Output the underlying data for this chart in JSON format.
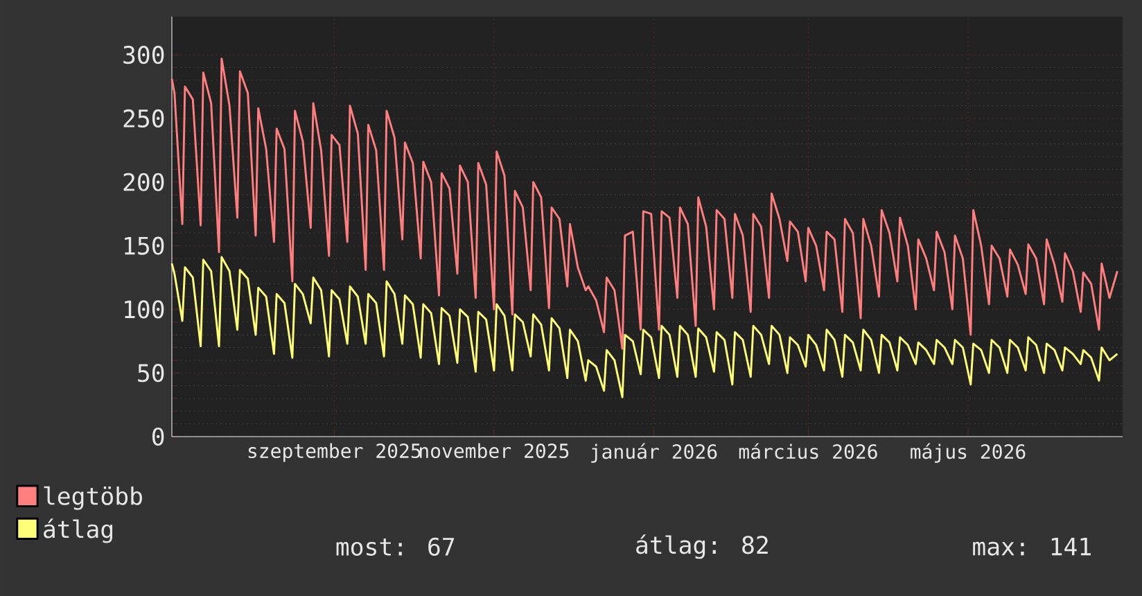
{
  "chart_data": {
    "type": "line",
    "x": [
      "2025-07-01",
      "2025-07-02",
      "2025-07-05",
      "2025-07-06",
      "2025-07-09",
      "2025-07-12",
      "2025-07-13",
      "2025-07-16",
      "2025-07-19",
      "2025-07-20",
      "2025-07-23",
      "2025-07-26",
      "2025-07-27",
      "2025-07-30",
      "2025-08-02",
      "2025-08-03",
      "2025-08-06",
      "2025-08-09",
      "2025-08-10",
      "2025-08-13",
      "2025-08-16",
      "2025-08-17",
      "2025-08-20",
      "2025-08-23",
      "2025-08-24",
      "2025-08-27",
      "2025-08-30",
      "2025-08-31",
      "2025-09-03",
      "2025-09-06",
      "2025-09-07",
      "2025-09-10",
      "2025-09-13",
      "2025-09-14",
      "2025-09-17",
      "2025-09-20",
      "2025-09-21",
      "2025-09-24",
      "2025-09-27",
      "2025-09-28",
      "2025-10-01",
      "2025-10-04",
      "2025-10-05",
      "2025-10-08",
      "2025-10-11",
      "2025-10-12",
      "2025-10-15",
      "2025-10-18",
      "2025-10-19",
      "2025-10-22",
      "2025-10-25",
      "2025-10-26",
      "2025-10-29",
      "2025-11-01",
      "2025-11-02",
      "2025-11-05",
      "2025-11-08",
      "2025-11-09",
      "2025-11-12",
      "2025-11-15",
      "2025-11-16",
      "2025-11-19",
      "2025-11-22",
      "2025-11-23",
      "2025-11-26",
      "2025-11-29",
      "2025-11-30",
      "2025-12-03",
      "2025-12-06",
      "2025-12-07",
      "2025-12-10",
      "2025-12-13",
      "2025-12-14",
      "2025-12-17",
      "2025-12-20",
      "2025-12-21",
      "2025-12-24",
      "2025-12-27",
      "2025-12-28",
      "2025-12-31",
      "2026-01-03",
      "2026-01-04",
      "2026-01-07",
      "2026-01-10",
      "2026-01-11",
      "2026-01-14",
      "2026-01-17",
      "2026-01-18",
      "2026-01-21",
      "2026-01-24",
      "2026-01-25",
      "2026-01-28",
      "2026-01-31",
      "2026-02-01",
      "2026-02-04",
      "2026-02-07",
      "2026-02-08",
      "2026-02-11",
      "2026-02-14",
      "2026-02-15",
      "2026-02-18",
      "2026-02-21",
      "2026-02-22",
      "2026-02-25",
      "2026-02-28",
      "2026-03-01",
      "2026-03-04",
      "2026-03-07",
      "2026-03-08",
      "2026-03-11",
      "2026-03-14",
      "2026-03-15",
      "2026-03-18",
      "2026-03-21",
      "2026-03-22",
      "2026-03-25",
      "2026-03-28",
      "2026-03-29",
      "2026-04-01",
      "2026-04-04",
      "2026-04-05",
      "2026-04-08",
      "2026-04-11",
      "2026-04-12",
      "2026-04-15",
      "2026-04-18",
      "2026-04-19",
      "2026-04-22",
      "2026-04-25",
      "2026-04-26",
      "2026-04-29",
      "2026-05-02",
      "2026-05-03",
      "2026-05-06",
      "2026-05-09",
      "2026-05-10",
      "2026-05-13",
      "2026-05-16",
      "2026-05-17",
      "2026-05-20",
      "2026-05-23",
      "2026-05-24",
      "2026-05-27",
      "2026-05-30",
      "2026-05-31",
      "2026-06-03",
      "2026-06-06",
      "2026-06-07",
      "2026-06-10",
      "2026-06-13",
      "2026-06-14",
      "2026-06-17",
      "2026-06-20",
      "2026-06-21",
      "2026-06-24",
      "2026-06-27"
    ],
    "series": [
      {
        "name": "legtöbb",
        "color": "#ff7f7f",
        "values": [
          281,
          270,
          167,
          275,
          265,
          166,
          286,
          262,
          145,
          297,
          260,
          172,
          287,
          270,
          158,
          258,
          226,
          153,
          242,
          226,
          122,
          256,
          232,
          164,
          262,
          225,
          142,
          237,
          229,
          153,
          260,
          238,
          131,
          245,
          225,
          131,
          256,
          235,
          155,
          231,
          215,
          140,
          216,
          200,
          111,
          207,
          195,
          128,
          213,
          200,
          109,
          215,
          198,
          100,
          224,
          205,
          96,
          193,
          180,
          115,
          200,
          188,
          101,
          180,
          171,
          118,
          167,
          133,
          115,
          118,
          107,
          82,
          125,
          115,
          69,
          158,
          161,
          84,
          177,
          175,
          84,
          177,
          172,
          109,
          180,
          167,
          87,
          188,
          165,
          100,
          178,
          171,
          109,
          175,
          158,
          98,
          175,
          165,
          109,
          191,
          171,
          138,
          169,
          161,
          122,
          164,
          150,
          115,
          161,
          155,
          98,
          171,
          160,
          93,
          171,
          150,
          110,
          178,
          160,
          122,
          172,
          150,
          100,
          155,
          140,
          115,
          161,
          145,
          100,
          158,
          140,
          80,
          178,
          150,
          104,
          150,
          140,
          110,
          147,
          135,
          112,
          151,
          140,
          104,
          155,
          135,
          106,
          144,
          130,
          98,
          129,
          120,
          84,
          136,
          109,
          130
        ]
      },
      {
        "name": "átlag",
        "color": "#ffff77",
        "values": [
          136,
          128,
          91,
          133,
          125,
          71,
          139,
          130,
          71,
          141,
          130,
          84,
          131,
          124,
          80,
          117,
          110,
          65,
          112,
          105,
          62,
          120,
          112,
          89,
          125,
          115,
          63,
          115,
          108,
          73,
          118,
          110,
          73,
          112,
          105,
          63,
          122,
          112,
          73,
          111,
          104,
          62,
          104,
          97,
          57,
          101,
          95,
          58,
          100,
          94,
          51,
          98,
          92,
          52,
          104,
          95,
          52,
          96,
          90,
          63,
          96,
          88,
          52,
          93,
          85,
          46,
          84,
          75,
          44,
          60,
          55,
          36,
          68,
          60,
          31,
          80,
          75,
          49,
          84,
          78,
          46,
          87,
          80,
          47,
          87,
          80,
          47,
          85,
          78,
          51,
          82,
          76,
          41,
          82,
          76,
          47,
          87,
          80,
          57,
          87,
          80,
          50,
          78,
          72,
          55,
          80,
          72,
          52,
          84,
          76,
          47,
          80,
          74,
          52,
          84,
          76,
          50,
          80,
          74,
          52,
          78,
          72,
          57,
          74,
          68,
          57,
          76,
          70,
          57,
          76,
          70,
          41,
          73,
          68,
          50,
          76,
          70,
          50,
          76,
          70,
          52,
          78,
          72,
          50,
          73,
          68,
          52,
          70,
          65,
          57,
          68,
          62,
          44,
          70,
          60,
          65
        ]
      }
    ],
    "xlim": [
      "2025-07-01",
      "2026-06-29"
    ],
    "xticks": [
      {
        "value": "2025-09-01",
        "label": "szeptember 2025"
      },
      {
        "value": "2025-11-01",
        "label": "november 2025"
      },
      {
        "value": "2026-01-01",
        "label": "január 2026"
      },
      {
        "value": "2026-03-01",
        "label": "március 2026"
      },
      {
        "value": "2026-05-01",
        "label": "május 2026"
      }
    ],
    "ylim": [
      0,
      330
    ],
    "yticks": [
      0,
      50,
      100,
      150,
      200,
      250,
      300
    ],
    "grid": true,
    "legend": "bottom",
    "annotations": [
      "most: 67",
      "átlag: 82",
      "max: 141"
    ]
  }
}
